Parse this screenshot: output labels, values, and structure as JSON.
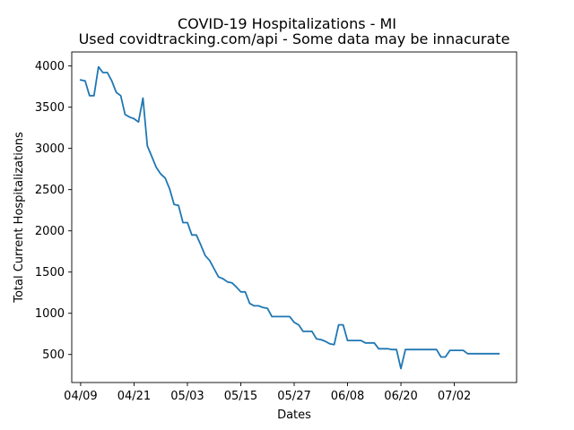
{
  "chart_data": {
    "type": "line",
    "title": "COVID-19 Hospitalizations - MI",
    "subtitle": "Used covidtracking.com/api - Some data may be innacurate",
    "xlabel": "Dates",
    "ylabel": "Total Current Hospitalizations",
    "grid": false,
    "legend": "none",
    "xlim": [
      "2020-04-07",
      "2020-07-16"
    ],
    "ylim": [
      160,
      4170
    ],
    "x_ticks": [
      {
        "date": "2020-04-09",
        "label": "04/09"
      },
      {
        "date": "2020-04-21",
        "label": "04/21"
      },
      {
        "date": "2020-05-03",
        "label": "05/03"
      },
      {
        "date": "2020-05-15",
        "label": "05/15"
      },
      {
        "date": "2020-05-27",
        "label": "05/27"
      },
      {
        "date": "2020-06-08",
        "label": "06/08"
      },
      {
        "date": "2020-06-20",
        "label": "06/20"
      },
      {
        "date": "2020-07-02",
        "label": "07/02"
      }
    ],
    "y_ticks": [
      500,
      1000,
      1500,
      2000,
      2500,
      3000,
      3500,
      4000
    ],
    "series": [
      {
        "color": "#1f77b4",
        "x": [
          "2020-04-09",
          "2020-04-10",
          "2020-04-11",
          "2020-04-12",
          "2020-04-13",
          "2020-04-14",
          "2020-04-15",
          "2020-04-16",
          "2020-04-17",
          "2020-04-18",
          "2020-04-19",
          "2020-04-20",
          "2020-04-21",
          "2020-04-22",
          "2020-04-23",
          "2020-04-24",
          "2020-04-25",
          "2020-04-26",
          "2020-04-27",
          "2020-04-28",
          "2020-04-29",
          "2020-04-30",
          "2020-05-01",
          "2020-05-02",
          "2020-05-03",
          "2020-05-04",
          "2020-05-05",
          "2020-05-06",
          "2020-05-07",
          "2020-05-08",
          "2020-05-09",
          "2020-05-10",
          "2020-05-11",
          "2020-05-12",
          "2020-05-13",
          "2020-05-14",
          "2020-05-15",
          "2020-05-16",
          "2020-05-17",
          "2020-05-18",
          "2020-05-19",
          "2020-05-20",
          "2020-05-21",
          "2020-05-22",
          "2020-05-23",
          "2020-05-24",
          "2020-05-25",
          "2020-05-26",
          "2020-05-27",
          "2020-05-28",
          "2020-05-29",
          "2020-05-30",
          "2020-05-31",
          "2020-06-01",
          "2020-06-02",
          "2020-06-03",
          "2020-06-04",
          "2020-06-05",
          "2020-06-06",
          "2020-06-07",
          "2020-06-08",
          "2020-06-09",
          "2020-06-10",
          "2020-06-11",
          "2020-06-12",
          "2020-06-13",
          "2020-06-14",
          "2020-06-15",
          "2020-06-16",
          "2020-06-17",
          "2020-06-18",
          "2020-06-19",
          "2020-06-20",
          "2020-06-21",
          "2020-06-22",
          "2020-06-23",
          "2020-06-24",
          "2020-06-25",
          "2020-06-26",
          "2020-06-27",
          "2020-06-28",
          "2020-06-29",
          "2020-06-30",
          "2020-07-01",
          "2020-07-02",
          "2020-07-03",
          "2020-07-04",
          "2020-07-05",
          "2020-07-06",
          "2020-07-07",
          "2020-07-08",
          "2020-07-09",
          "2020-07-10",
          "2020-07-11",
          "2020-07-12"
        ],
        "y": [
          3830,
          3820,
          3640,
          3640,
          3990,
          3920,
          3920,
          3820,
          3680,
          3640,
          3410,
          3380,
          3360,
          3320,
          3610,
          3030,
          2900,
          2770,
          2690,
          2640,
          2510,
          2320,
          2310,
          2100,
          2100,
          1950,
          1950,
          1830,
          1700,
          1640,
          1540,
          1440,
          1420,
          1380,
          1370,
          1320,
          1260,
          1260,
          1120,
          1090,
          1090,
          1070,
          1060,
          960,
          960,
          960,
          960,
          960,
          890,
          860,
          780,
          780,
          780,
          690,
          680,
          660,
          630,
          620,
          860,
          860,
          670,
          670,
          670,
          670,
          640,
          640,
          640,
          570,
          570,
          570,
          560,
          560,
          330,
          560,
          560,
          560,
          560,
          560,
          560,
          560,
          560,
          470,
          470,
          550,
          550,
          550,
          550,
          510,
          510,
          510,
          510,
          510,
          510,
          510,
          510
        ]
      }
    ]
  }
}
